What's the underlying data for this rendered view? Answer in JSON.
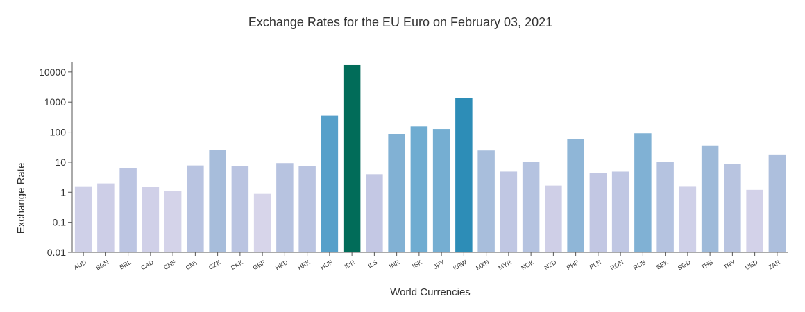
{
  "chart_data": {
    "type": "bar",
    "title": "Exchange Rates for the EU Euro on February 03, 2021",
    "xlabel": "World Currencies",
    "ylabel": "Exchange Rate",
    "yscale": "log",
    "ylim": [
      0.01,
      16000
    ],
    "yticks": [
      0.01,
      0.1,
      1,
      10,
      100,
      1000,
      10000
    ],
    "ytick_labels": [
      "0.01",
      "0.1",
      "1",
      "10",
      "100",
      "1000",
      "10000"
    ],
    "grid": false,
    "legend": "none",
    "colormap": "PuBuGn (by log value)",
    "categories": [
      "AUD",
      "BGN",
      "BRL",
      "CAD",
      "CHF",
      "CNY",
      "CZK",
      "DKK",
      "GBP",
      "HKD",
      "HRK",
      "HUF",
      "IDR",
      "ILS",
      "INR",
      "ISK",
      "JPY",
      "KRW",
      "MXN",
      "MYR",
      "NOK",
      "NZD",
      "PHP",
      "PLN",
      "RON",
      "RUB",
      "SEK",
      "SGD",
      "THB",
      "TRY",
      "USD",
      "ZAR"
    ],
    "values": [
      1.58,
      1.96,
      6.5,
      1.54,
      1.08,
      7.78,
      25.9,
      7.44,
      0.88,
      9.33,
      7.57,
      357.0,
      16900.0,
      3.97,
      87.9,
      155.0,
      127.0,
      1345.0,
      24.3,
      4.88,
      10.3,
      1.67,
      57.9,
      4.49,
      4.87,
      91.5,
      10.1,
      1.6,
      36.1,
      8.61,
      1.2,
      18.0
    ]
  }
}
